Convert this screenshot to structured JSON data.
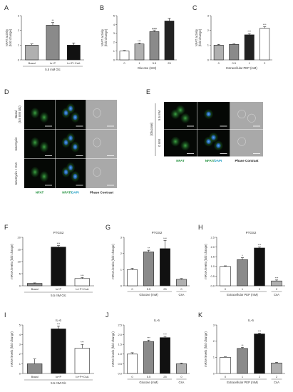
{
  "colors": {
    "green": "#1e8f3a",
    "cyan": "#1a9cc4",
    "dark": "#222222",
    "mid_gray": "#8a8a8a",
    "light_gray": "#b0b0b0",
    "white": "#ffffff",
    "black": "#111111"
  },
  "panels": {
    "A": "A",
    "B": "B",
    "C": "C",
    "D": "D",
    "E": "E",
    "F": "F",
    "G": "G",
    "H": "H",
    "I": "I",
    "J": "J",
    "K": "K"
  },
  "D": {
    "rows": [
      "Basal\n(5.5 mM Glc)",
      "Ionomycin",
      "Ionomycin + CsA"
    ],
    "cols": [
      "NFAT",
      "NFAT/DAPI",
      "Phase Contrast"
    ]
  },
  "E": {
    "group_label": "[Glucose]",
    "rows": [
      "5.5 mM",
      "0 mM"
    ],
    "cols": [
      "NFAT",
      "NFAT/DAPI",
      "Phase Contrast"
    ]
  },
  "chart_data": [
    {
      "panel": "A",
      "type": "bar",
      "ylabel": "NFAT activity\n(fold change)",
      "categories": [
        "Basal",
        "Io+P",
        "Io+P+CsA"
      ],
      "values": [
        1.0,
        2.35,
        1.0
      ],
      "errors": [
        0.08,
        0.18,
        0.15
      ],
      "stars": [
        "",
        "**",
        ""
      ],
      "colors": [
        "#b0b0b0",
        "#8a8a8a",
        "#111111"
      ],
      "xlabel": "5.5 mM Glc",
      "ylim": [
        0,
        3
      ],
      "yticks": [
        0,
        1,
        2,
        3
      ]
    },
    {
      "panel": "B",
      "type": "bar",
      "ylabel": "NFAT activity\n(fold change)",
      "categories": [
        "0",
        "1",
        "5.5",
        "25"
      ],
      "values": [
        1.0,
        1.8,
        3.2,
        4.4
      ],
      "errors": [
        0.06,
        0.1,
        0.12,
        0.3
      ],
      "stars": [
        "",
        "***",
        "###",
        ""
      ],
      "colors": [
        "#ffffff",
        "#b0b0b0",
        "#8a8a8a",
        "#222222"
      ],
      "xlabel": "Glucose (mM)",
      "ylim": [
        0,
        5
      ],
      "yticks": [
        0,
        1,
        2,
        3,
        4,
        5
      ]
    },
    {
      "panel": "C",
      "type": "bar",
      "ylabel": "NFAT activity\n(fold change)",
      "categories": [
        "0",
        "0.5",
        "1",
        "2"
      ],
      "values": [
        1.0,
        1.05,
        1.7,
        2.15
      ],
      "errors": [
        0.05,
        0.04,
        0.08,
        0.1
      ],
      "stars": [
        "",
        "",
        "***",
        "***"
      ],
      "colors": [
        "#b0b0b0",
        "#8a8a8a",
        "#222222",
        "#ffffff"
      ],
      "xlabel": "Extracellular PEP (mM)",
      "ylim": [
        0,
        3
      ],
      "yticks": [
        0,
        1,
        2,
        3
      ]
    },
    {
      "panel": "F",
      "type": "bar",
      "title": "PTGS2",
      "ylabel": "mRNA levels (fold change)",
      "categories": [
        "Basal",
        "Io+P",
        "Io+P+CsA"
      ],
      "values": [
        1.0,
        16.0,
        3.0
      ],
      "errors": [
        0.2,
        0.6,
        0.4
      ],
      "stars": [
        "",
        "***",
        "***"
      ],
      "colors": [
        "#8a8a8a",
        "#111111",
        "#ffffff"
      ],
      "xlabel": "5.5 mM Glc",
      "ylim": [
        0,
        20
      ],
      "yticks": [
        0,
        5,
        10,
        15,
        20
      ]
    },
    {
      "panel": "G",
      "type": "bar",
      "title": "PTGS2",
      "ylabel": "mRNA levels (fold change)",
      "categories": [
        "0",
        "5.5",
        "25",
        "0"
      ],
      "values": [
        1.0,
        2.1,
        2.3,
        0.4
      ],
      "errors": [
        0.08,
        0.1,
        0.5,
        0.05
      ],
      "stars": [
        "",
        "**",
        "***",
        ""
      ],
      "colors": [
        "#ffffff",
        "#8a8a8a",
        "#111111",
        "#b0b0b0"
      ],
      "xlabel": "Glucose (mM)",
      "sublabel": "CsA",
      "ylim": [
        0,
        3
      ],
      "yticks": [
        0,
        1.0,
        2.0,
        3.0
      ]
    },
    {
      "panel": "H",
      "type": "bar",
      "title": "PTGS2",
      "ylabel": "mRNA levels (fold change)",
      "categories": [
        "0",
        "1",
        "2",
        "2"
      ],
      "values": [
        1.0,
        1.35,
        1.95,
        0.25
      ],
      "errors": [
        0.03,
        0.1,
        0.05,
        0.05
      ],
      "stars": [
        "",
        "*",
        "***",
        "***"
      ],
      "colors": [
        "#ffffff",
        "#8a8a8a",
        "#111111",
        "#b0b0b0"
      ],
      "xlabel": "Extracellular PEP (mM)",
      "sublabel": "CsA",
      "ylim": [
        0,
        2.5
      ],
      "yticks": [
        0,
        0.5,
        1.0,
        1.5,
        2.0,
        2.5
      ]
    },
    {
      "panel": "I",
      "type": "bar",
      "title": "IL-6",
      "ylabel": "mRNA levels (fold change)",
      "categories": [
        "Basal",
        "Io+P",
        "Io+P+CsA"
      ],
      "values": [
        1.0,
        4.6,
        2.6
      ],
      "errors": [
        0.5,
        0.3,
        0.4
      ],
      "stars": [
        "",
        "***",
        "***"
      ],
      "colors": [
        "#8a8a8a",
        "#111111",
        "#ffffff"
      ],
      "xlabel": "5.5 mM Glc",
      "ylim": [
        0,
        5
      ],
      "yticks": [
        0,
        1,
        2,
        3,
        4,
        5
      ]
    },
    {
      "panel": "J",
      "type": "bar",
      "title": "IL-6",
      "ylabel": "mRNA levels (fold change)",
      "categories": [
        "0",
        "5.5",
        "25",
        "0"
      ],
      "values": [
        1.0,
        1.65,
        1.85,
        0.5
      ],
      "errors": [
        0.07,
        0.07,
        0.06,
        0.04
      ],
      "stars": [
        "",
        "***",
        "***",
        ""
      ],
      "colors": [
        "#ffffff",
        "#8a8a8a",
        "#111111",
        "#b0b0b0"
      ],
      "xlabel": "Glucose (mM)",
      "sublabel": "CsA",
      "ylim": [
        0,
        2.5
      ],
      "yticks": [
        0,
        0.5,
        1.0,
        1.5,
        2.0,
        2.5
      ]
    },
    {
      "panel": "K",
      "type": "bar",
      "title": "IL-6",
      "ylabel": "mRNA levels (fold change)",
      "categories": [
        "0",
        "1",
        "2",
        "2"
      ],
      "values": [
        1.0,
        1.55,
        2.45,
        0.65
      ],
      "errors": [
        0.03,
        0.07,
        0.05,
        0.04
      ],
      "stars": [
        "",
        "**",
        "***",
        ""
      ],
      "colors": [
        "#ffffff",
        "#8a8a8a",
        "#111111",
        "#b0b0b0"
      ],
      "xlabel": "Extracellular PEP (mM)",
      "sublabel": "CsA",
      "ylim": [
        0,
        3
      ],
      "yticks": [
        0,
        1,
        2,
        3
      ]
    }
  ]
}
